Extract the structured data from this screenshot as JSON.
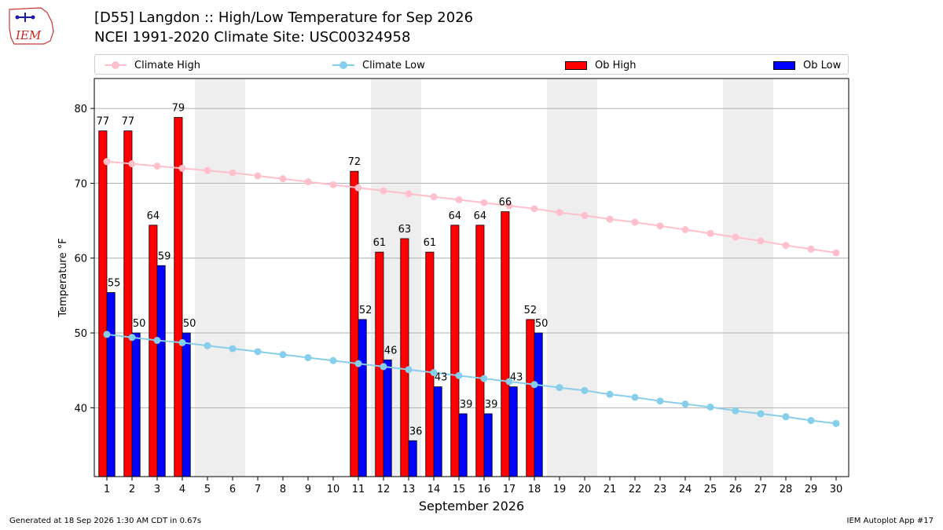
{
  "header": {
    "title_line1": "[D55] Langdon :: High/Low Temperature for Sep 2026",
    "title_line2": "NCEI 1991-2020 Climate Site: USC00324958",
    "logo_text": "IEM"
  },
  "footer": {
    "generated": "Generated at 18 Sep 2026 1:30 AM CDT in 0.67s",
    "app": "IEM Autoplot App #17"
  },
  "colors": {
    "ob_high": "#ff0000",
    "ob_low": "#0000ff",
    "climate_high": "#ffc0cb",
    "climate_low": "#87ceeb",
    "weekend_band": "#eeeeee",
    "grid": "#b0b0b0"
  },
  "chart_data": {
    "type": "bar",
    "title": "[D55] Langdon :: High/Low Temperature for Sep 2026",
    "xlabel": "September 2026",
    "ylabel": "Temperature °F",
    "ylim": [
      30.8,
      84
    ],
    "yticks": [
      40,
      50,
      60,
      70,
      80
    ],
    "xlim": [
      0.5,
      30.5
    ],
    "grid": "horizontal",
    "legend_placement": "top",
    "categories": [
      "1",
      "2",
      "3",
      "4",
      "5",
      "6",
      "7",
      "8",
      "9",
      "10",
      "11",
      "12",
      "13",
      "14",
      "15",
      "16",
      "17",
      "18",
      "19",
      "20",
      "21",
      "22",
      "23",
      "24",
      "25",
      "26",
      "27",
      "28",
      "29",
      "30"
    ],
    "shaded_days": [
      [
        5,
        6
      ],
      [
        12,
        13
      ],
      [
        19,
        20
      ],
      [
        26,
        27
      ]
    ],
    "series": [
      {
        "name": "Ob High",
        "type": "bar",
        "values": [
          77,
          77,
          64,
          79,
          null,
          null,
          null,
          null,
          null,
          null,
          72,
          61,
          63,
          61,
          64,
          64,
          66,
          52,
          null,
          null,
          null,
          null,
          null,
          null,
          null,
          null,
          null,
          null,
          null,
          null
        ],
        "bar_values": [
          77,
          77,
          64.4,
          78.8,
          null,
          null,
          null,
          null,
          null,
          null,
          71.6,
          60.8,
          62.6,
          60.8,
          64.4,
          64.4,
          66.2,
          51.8,
          null,
          null,
          null,
          null,
          null,
          null,
          null,
          null,
          null,
          null,
          null,
          null
        ]
      },
      {
        "name": "Ob Low",
        "type": "bar",
        "values": [
          55,
          50,
          59,
          50,
          null,
          null,
          null,
          null,
          null,
          null,
          52,
          46,
          36,
          43,
          39,
          39,
          43,
          50,
          null,
          null,
          null,
          null,
          null,
          null,
          null,
          null,
          null,
          null,
          null,
          null
        ],
        "bar_values": [
          55.4,
          50,
          59,
          50,
          null,
          null,
          null,
          null,
          null,
          null,
          51.8,
          46.4,
          35.6,
          42.8,
          39.2,
          39.2,
          42.8,
          50,
          null,
          null,
          null,
          null,
          null,
          null,
          null,
          null,
          null,
          null,
          null,
          null
        ]
      },
      {
        "name": "Climate High",
        "type": "line",
        "values": [
          72.9,
          72.6,
          72.3,
          72.0,
          71.7,
          71.4,
          71.0,
          70.6,
          70.2,
          69.8,
          69.4,
          69.0,
          68.6,
          68.2,
          67.8,
          67.4,
          67.0,
          66.6,
          66.1,
          65.7,
          65.2,
          64.8,
          64.3,
          63.8,
          63.3,
          62.8,
          62.3,
          61.7,
          61.2,
          60.7
        ]
      },
      {
        "name": "Climate Low",
        "type": "line",
        "values": [
          49.8,
          49.4,
          49.0,
          48.7,
          48.3,
          47.9,
          47.5,
          47.1,
          46.7,
          46.3,
          45.9,
          45.5,
          45.1,
          44.7,
          44.3,
          43.9,
          43.5,
          43.1,
          42.7,
          42.3,
          41.8,
          41.4,
          40.9,
          40.5,
          40.1,
          39.6,
          39.2,
          38.8,
          38.3,
          37.9
        ]
      }
    ]
  }
}
